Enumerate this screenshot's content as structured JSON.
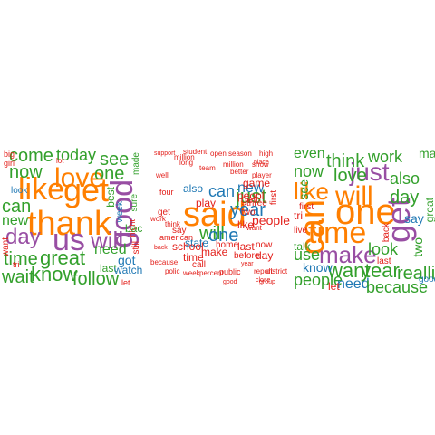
{
  "palette": {
    "red": "#e3211c",
    "orange": "#ff7f00",
    "green": "#33a02c",
    "blue": "#1f78b4",
    "purple": "#984ea3"
  },
  "clouds": [
    {
      "id": "cloud-1",
      "words": [
        "come",
        "today",
        "thank",
        "like",
        "love",
        "get",
        "good",
        "will",
        "day",
        "us",
        "one",
        "see",
        "great",
        "know",
        "time",
        "can",
        "now",
        "new",
        "follow",
        "got",
        "need",
        "best",
        "sure",
        "made",
        "wait",
        "last",
        "night",
        "still",
        "back",
        "tri",
        "girl",
        "big",
        "lot",
        "week",
        "watch",
        "look",
        "want",
        "let"
      ]
    },
    {
      "id": "cloud-2",
      "words": [
        "said",
        "just",
        "will",
        "one",
        "year",
        "can",
        "new",
        "also",
        "state",
        "make",
        "time",
        "day",
        "say",
        "get",
        "people",
        "like",
        "peopl",
        "game",
        "three",
        "school",
        "first",
        "play",
        "two",
        "last",
        "now",
        "home",
        "report",
        "million",
        "support",
        "student",
        "place",
        "call",
        "season",
        "because",
        "before",
        "group",
        "percent",
        "polic",
        "year",
        "back",
        "well",
        "get",
        "think",
        "show",
        "work",
        "american",
        "close",
        "good",
        "public",
        "week",
        "open",
        "long",
        "team",
        "four",
        "better",
        "million",
        "player",
        "want",
        "high",
        "district"
      ]
    },
    {
      "id": "cloud-3",
      "words": [
        "even",
        "think",
        "work",
        "just",
        "love",
        "one",
        "can",
        "like",
        "will",
        "time",
        "get",
        "make",
        "want",
        "now",
        "use",
        "see",
        "year",
        "people",
        "need",
        "realli",
        "because",
        "look",
        "day",
        "say",
        "also",
        "mani",
        "great",
        "two",
        "first",
        "talk",
        "tri",
        "live",
        "last",
        "know",
        "let",
        "good",
        "back"
      ]
    }
  ]
}
